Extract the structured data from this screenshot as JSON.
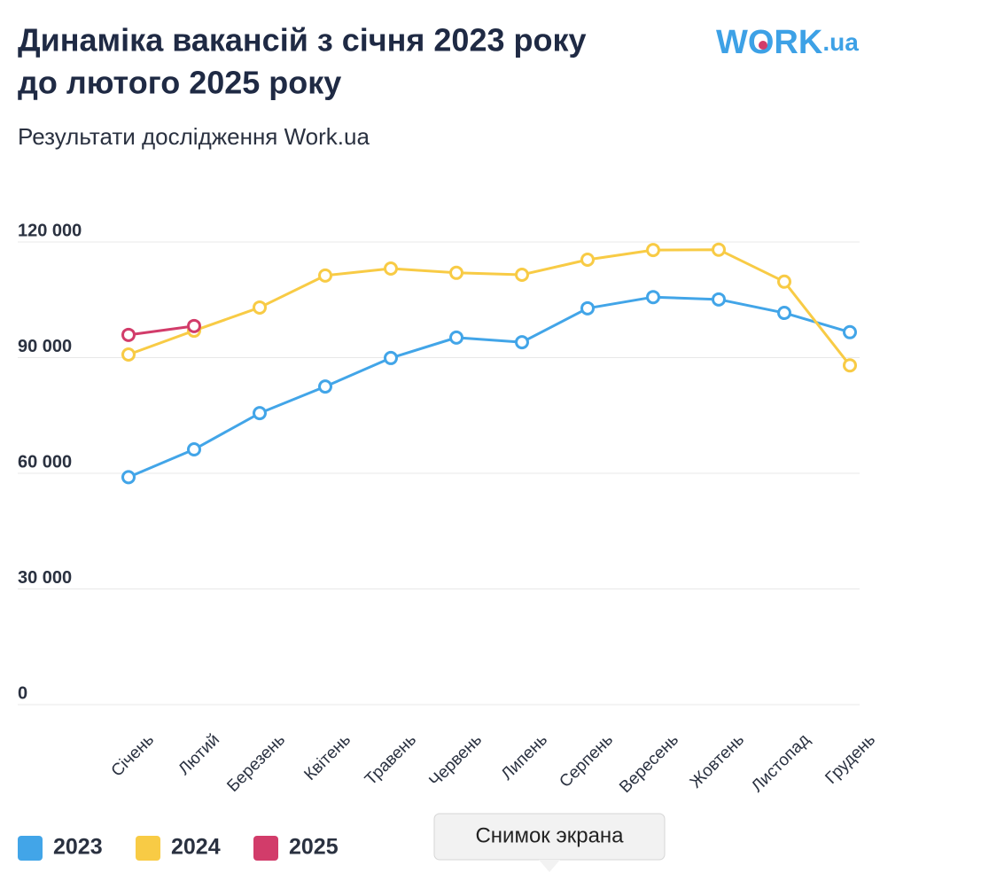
{
  "chart_data": {
    "type": "line",
    "title": "Динаміка вакансій з січня 2023 року",
    "title_line2": "до лютого 2025 року",
    "subtitle": "Результати дослідження Work.ua",
    "logo": {
      "main": "WORK",
      "suffix": ".ua"
    },
    "tooltip": "Снимок экрана",
    "categories": [
      "Січень",
      "Лютий",
      "Березень",
      "Квітень",
      "Травень",
      "Червень",
      "Липень",
      "Серпень",
      "Вересень",
      "Жовтень",
      "Листопад",
      "Грудень"
    ],
    "series": [
      {
        "name": "2023",
        "color": "#42a5e8",
        "values": [
          59000,
          66200,
          75600,
          82500,
          89900,
          95200,
          94000,
          102800,
          105700,
          105100,
          101600,
          96600
        ]
      },
      {
        "name": "2024",
        "color": "#f8cb45",
        "values": [
          90800,
          97000,
          103000,
          111300,
          113100,
          112000,
          111500,
          115400,
          117900,
          118000,
          109700,
          88000
        ]
      },
      {
        "name": "2025",
        "color": "#d23c6a",
        "values": [
          95900,
          98200,
          null,
          null,
          null,
          null,
          null,
          null,
          null,
          null,
          null,
          null
        ]
      }
    ],
    "ylim": [
      0,
      120000
    ],
    "yticks": [
      0,
      {
        "value": 30000,
        "label": "30 000"
      },
      {
        "value": 60000,
        "label": "60 000"
      },
      {
        "value": 90000,
        "label": "90 000"
      },
      {
        "value": 120000,
        "label": "120 000"
      }
    ],
    "grid": true
  }
}
